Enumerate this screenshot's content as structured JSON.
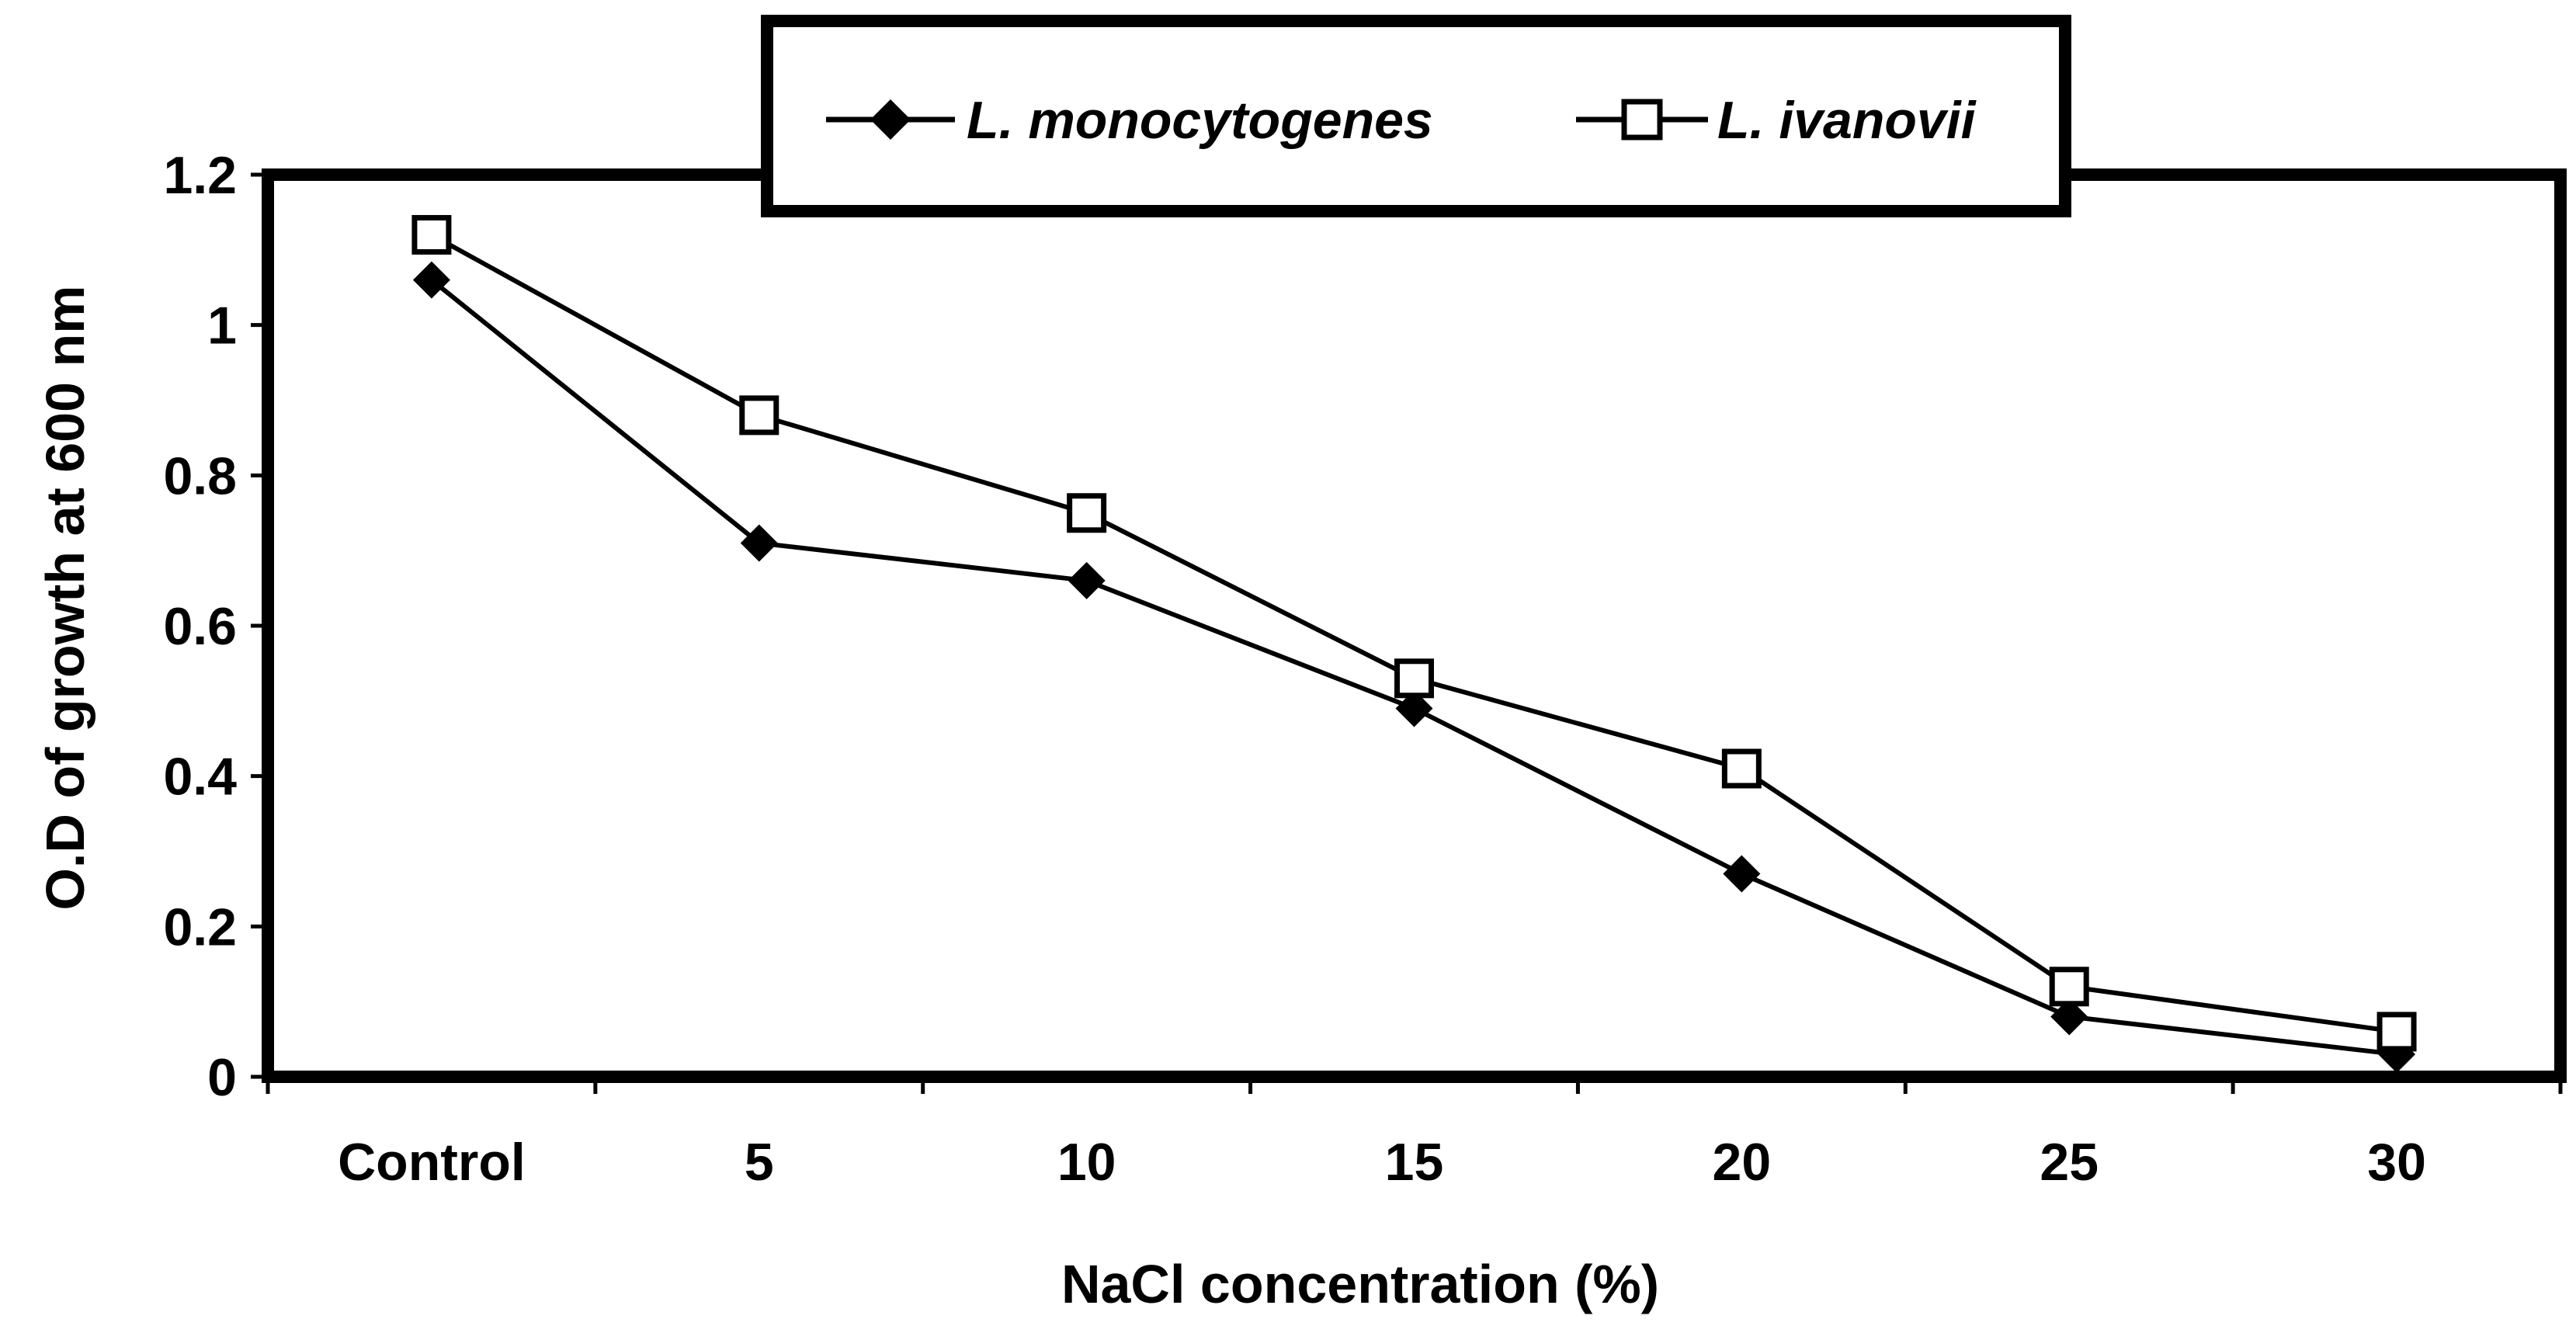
{
  "chart_data": {
    "type": "line",
    "title": "",
    "xlabel": "NaCl concentration (%)",
    "ylabel": "O.D of growth at 600 nm",
    "categories": [
      "Control",
      "5",
      "10",
      "15",
      "20",
      "25",
      "30"
    ],
    "ylim": [
      0,
      1.2
    ],
    "yticks": [
      "0",
      "0.2",
      "0.4",
      "0.6",
      "0.8",
      "1",
      "1.2"
    ],
    "grid": false,
    "legend_position": "top-center",
    "series": [
      {
        "name": "L. monocytogenes",
        "marker": "diamond-filled",
        "values": [
          1.06,
          0.71,
          0.66,
          0.49,
          0.27,
          0.08,
          0.03
        ]
      },
      {
        "name": "L. ivanovii",
        "marker": "square-open",
        "values": [
          1.12,
          0.88,
          0.75,
          0.53,
          0.41,
          0.12,
          0.06
        ]
      }
    ]
  }
}
